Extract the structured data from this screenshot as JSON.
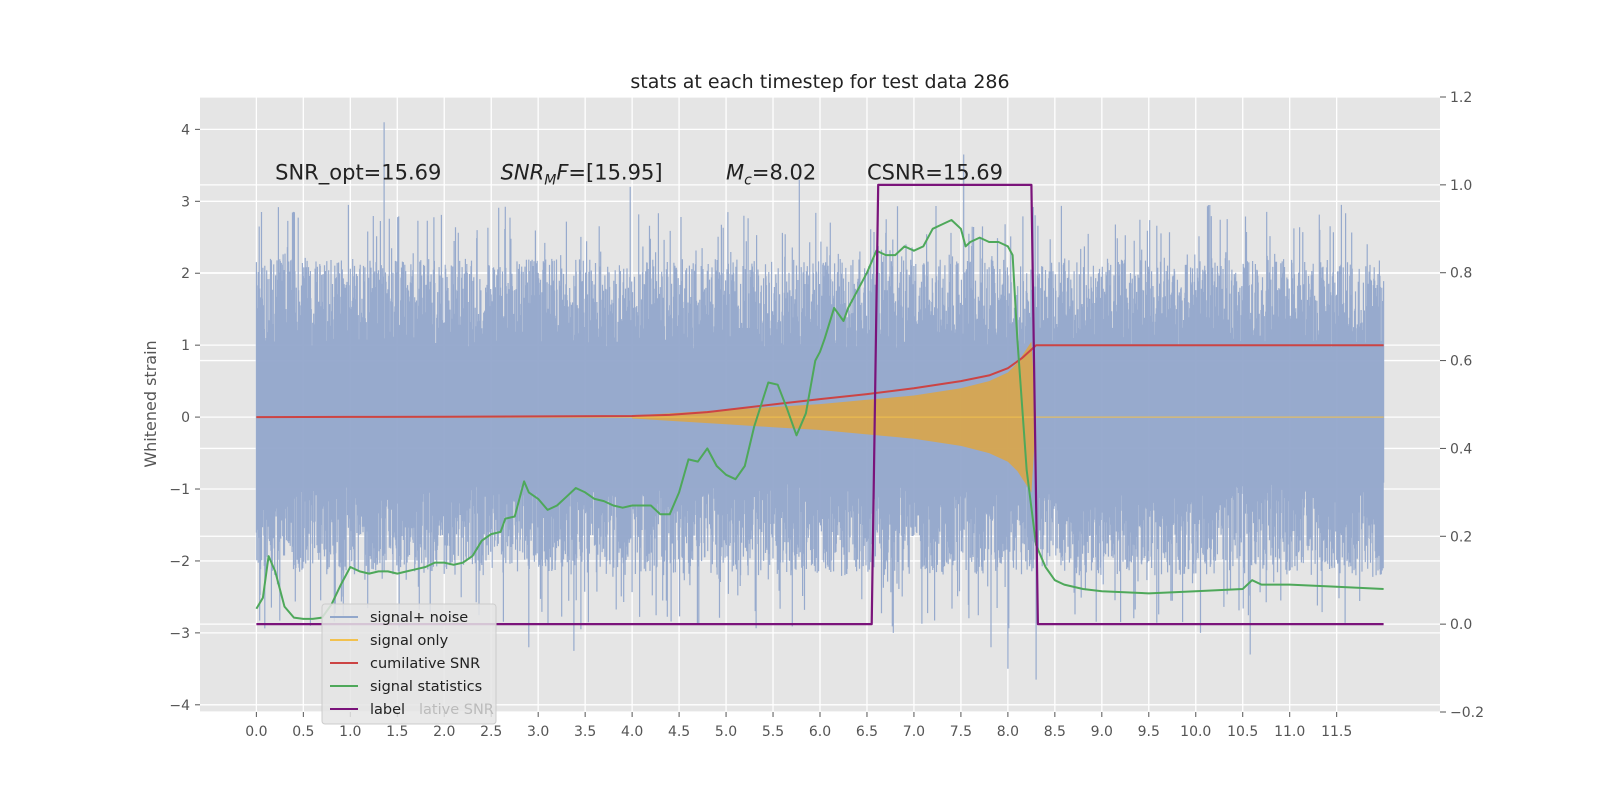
{
  "chart_data": {
    "type": "line",
    "title": "stats at each timestep for test data 286",
    "ylabel": "Whitened strain",
    "y2label": "",
    "xlim": [
      -0.6,
      12.6
    ],
    "ylim": [
      -4.1,
      4.45
    ],
    "y2lim": [
      -0.2,
      1.2
    ],
    "grid": true,
    "x_ticks": [
      "0.0",
      "0.5",
      "1.0",
      "1.5",
      "2.0",
      "2.5",
      "3.0",
      "3.5",
      "4.0",
      "4.5",
      "5.0",
      "5.5",
      "6.0",
      "6.5",
      "7.0",
      "7.5",
      "8.0",
      "8.5",
      "9.0",
      "9.5",
      "10.0",
      "10.5",
      "11.0",
      "11.5"
    ],
    "y_ticks": [
      {
        "v": 4,
        "label": "4"
      },
      {
        "v": 3,
        "label": "3"
      },
      {
        "v": 2,
        "label": "2"
      },
      {
        "v": 1,
        "label": "1"
      },
      {
        "v": 0,
        "label": "0"
      },
      {
        "v": -1,
        "label": "−1"
      },
      {
        "v": -2,
        "label": "−2"
      },
      {
        "v": -3,
        "label": "−3"
      },
      {
        "v": -4,
        "label": "−4"
      }
    ],
    "y2_ticks": [
      {
        "v": 1.2,
        "label": "1.2"
      },
      {
        "v": 1.0,
        "label": "1.0"
      },
      {
        "v": 0.8,
        "label": "0.8"
      },
      {
        "v": 0.6,
        "label": "0.6"
      },
      {
        "v": 0.4,
        "label": "0.4"
      },
      {
        "v": 0.2,
        "label": "0.2"
      },
      {
        "v": 0.0,
        "label": "0.0"
      },
      {
        "v": -0.2,
        "label": "−0.2"
      }
    ],
    "annotations": [
      {
        "text": "SNR_opt=15.69",
        "x": 0.2,
        "y": 3.3
      },
      {
        "text": "SNR_MF=[15.95]",
        "x": 2.6,
        "y": 3.3
      },
      {
        "text": "M_c=8.02",
        "x": 5.0,
        "y": 3.3
      },
      {
        "text": "CSNR=15.69",
        "x": 6.5,
        "y": 3.3
      }
    ],
    "legend": {
      "placement": "lower-left",
      "entries": [
        {
          "name": "signal+ noise",
          "color": "#92a7cb"
        },
        {
          "name": "signal only",
          "color": "#f2c14e"
        },
        {
          "name": "cumilative SNR",
          "color": "#cc4444"
        },
        {
          "name": "signal statistics",
          "color": "#4ea85a"
        },
        {
          "name": "label",
          "color": "#7a137a"
        }
      ],
      "ghost_text": "lative SNR"
    },
    "series": [
      {
        "name": "signal+ noise",
        "axis": "left",
        "style": "noise-band",
        "x_range": [
          0.0,
          12.0
        ],
        "envelope_typical": 2.0,
        "spike_max": 4.1,
        "spike_min": -3.65
      },
      {
        "name": "signal only",
        "axis": "left",
        "style": "chirp-fill",
        "x": [
          4.0,
          4.5,
          5.0,
          5.5,
          6.0,
          6.5,
          7.0,
          7.5,
          7.8,
          8.0,
          8.1,
          8.2,
          8.25,
          8.3
        ],
        "amplitude": [
          0.02,
          0.06,
          0.1,
          0.14,
          0.18,
          0.24,
          0.3,
          0.4,
          0.5,
          0.62,
          0.75,
          0.95,
          1.05,
          0.0
        ]
      },
      {
        "name": "cumilative SNR",
        "axis": "left",
        "x": [
          0.0,
          1.0,
          2.0,
          3.0,
          4.0,
          4.4,
          4.8,
          5.2,
          5.6,
          6.0,
          6.5,
          7.0,
          7.5,
          7.8,
          8.0,
          8.15,
          8.3,
          12.0
        ],
        "y": [
          0.0,
          0.003,
          0.006,
          0.01,
          0.015,
          0.03,
          0.07,
          0.13,
          0.19,
          0.25,
          0.32,
          0.4,
          0.5,
          0.58,
          0.68,
          0.82,
          1.0,
          1.0
        ]
      },
      {
        "name": "signal statistics",
        "axis": "right",
        "x": [
          0.0,
          0.07,
          0.13,
          0.2,
          0.3,
          0.4,
          0.5,
          0.6,
          0.7,
          0.8,
          0.9,
          1.0,
          1.1,
          1.2,
          1.3,
          1.4,
          1.5,
          1.6,
          1.7,
          1.8,
          1.9,
          2.0,
          2.1,
          2.2,
          2.3,
          2.4,
          2.5,
          2.6,
          2.65,
          2.75,
          2.85,
          2.9,
          3.0,
          3.1,
          3.2,
          3.3,
          3.4,
          3.5,
          3.6,
          3.7,
          3.8,
          3.9,
          4.0,
          4.1,
          4.2,
          4.3,
          4.4,
          4.5,
          4.6,
          4.7,
          4.8,
          4.9,
          5.0,
          5.1,
          5.2,
          5.3,
          5.45,
          5.55,
          5.65,
          5.75,
          5.85,
          5.95,
          6.0,
          6.05,
          6.15,
          6.25,
          6.3,
          6.4,
          6.5,
          6.6,
          6.7,
          6.8,
          6.9,
          7.0,
          7.1,
          7.2,
          7.3,
          7.4,
          7.5,
          7.55,
          7.6,
          7.7,
          7.8,
          7.9,
          8.0,
          8.05,
          8.1,
          8.2,
          8.3,
          8.4,
          8.5,
          8.6,
          8.8,
          9.0,
          9.5,
          10.0,
          10.5,
          10.6,
          10.7,
          11.0,
          11.5,
          12.0
        ],
        "y": [
          0.035,
          0.06,
          0.155,
          0.12,
          0.04,
          0.015,
          0.012,
          0.012,
          0.015,
          0.045,
          0.09,
          0.13,
          0.12,
          0.115,
          0.12,
          0.12,
          0.115,
          0.12,
          0.125,
          0.13,
          0.14,
          0.14,
          0.135,
          0.14,
          0.155,
          0.19,
          0.205,
          0.21,
          0.24,
          0.245,
          0.325,
          0.3,
          0.285,
          0.26,
          0.27,
          0.29,
          0.31,
          0.3,
          0.285,
          0.28,
          0.27,
          0.265,
          0.27,
          0.27,
          0.27,
          0.25,
          0.25,
          0.3,
          0.375,
          0.37,
          0.4,
          0.36,
          0.34,
          0.33,
          0.36,
          0.45,
          0.55,
          0.545,
          0.49,
          0.43,
          0.48,
          0.6,
          0.62,
          0.65,
          0.72,
          0.69,
          0.72,
          0.76,
          0.8,
          0.85,
          0.84,
          0.84,
          0.86,
          0.85,
          0.86,
          0.9,
          0.91,
          0.92,
          0.9,
          0.86,
          0.87,
          0.88,
          0.87,
          0.87,
          0.86,
          0.84,
          0.65,
          0.35,
          0.18,
          0.13,
          0.1,
          0.09,
          0.08,
          0.075,
          0.07,
          0.075,
          0.08,
          0.1,
          0.09,
          0.09,
          0.085,
          0.08
        ]
      },
      {
        "name": "label",
        "axis": "right",
        "x": [
          0.0,
          6.55,
          6.62,
          8.25,
          8.32,
          12.0
        ],
        "y": [
          0.0,
          0.0,
          1.0,
          1.0,
          0.0,
          0.0
        ]
      }
    ]
  }
}
